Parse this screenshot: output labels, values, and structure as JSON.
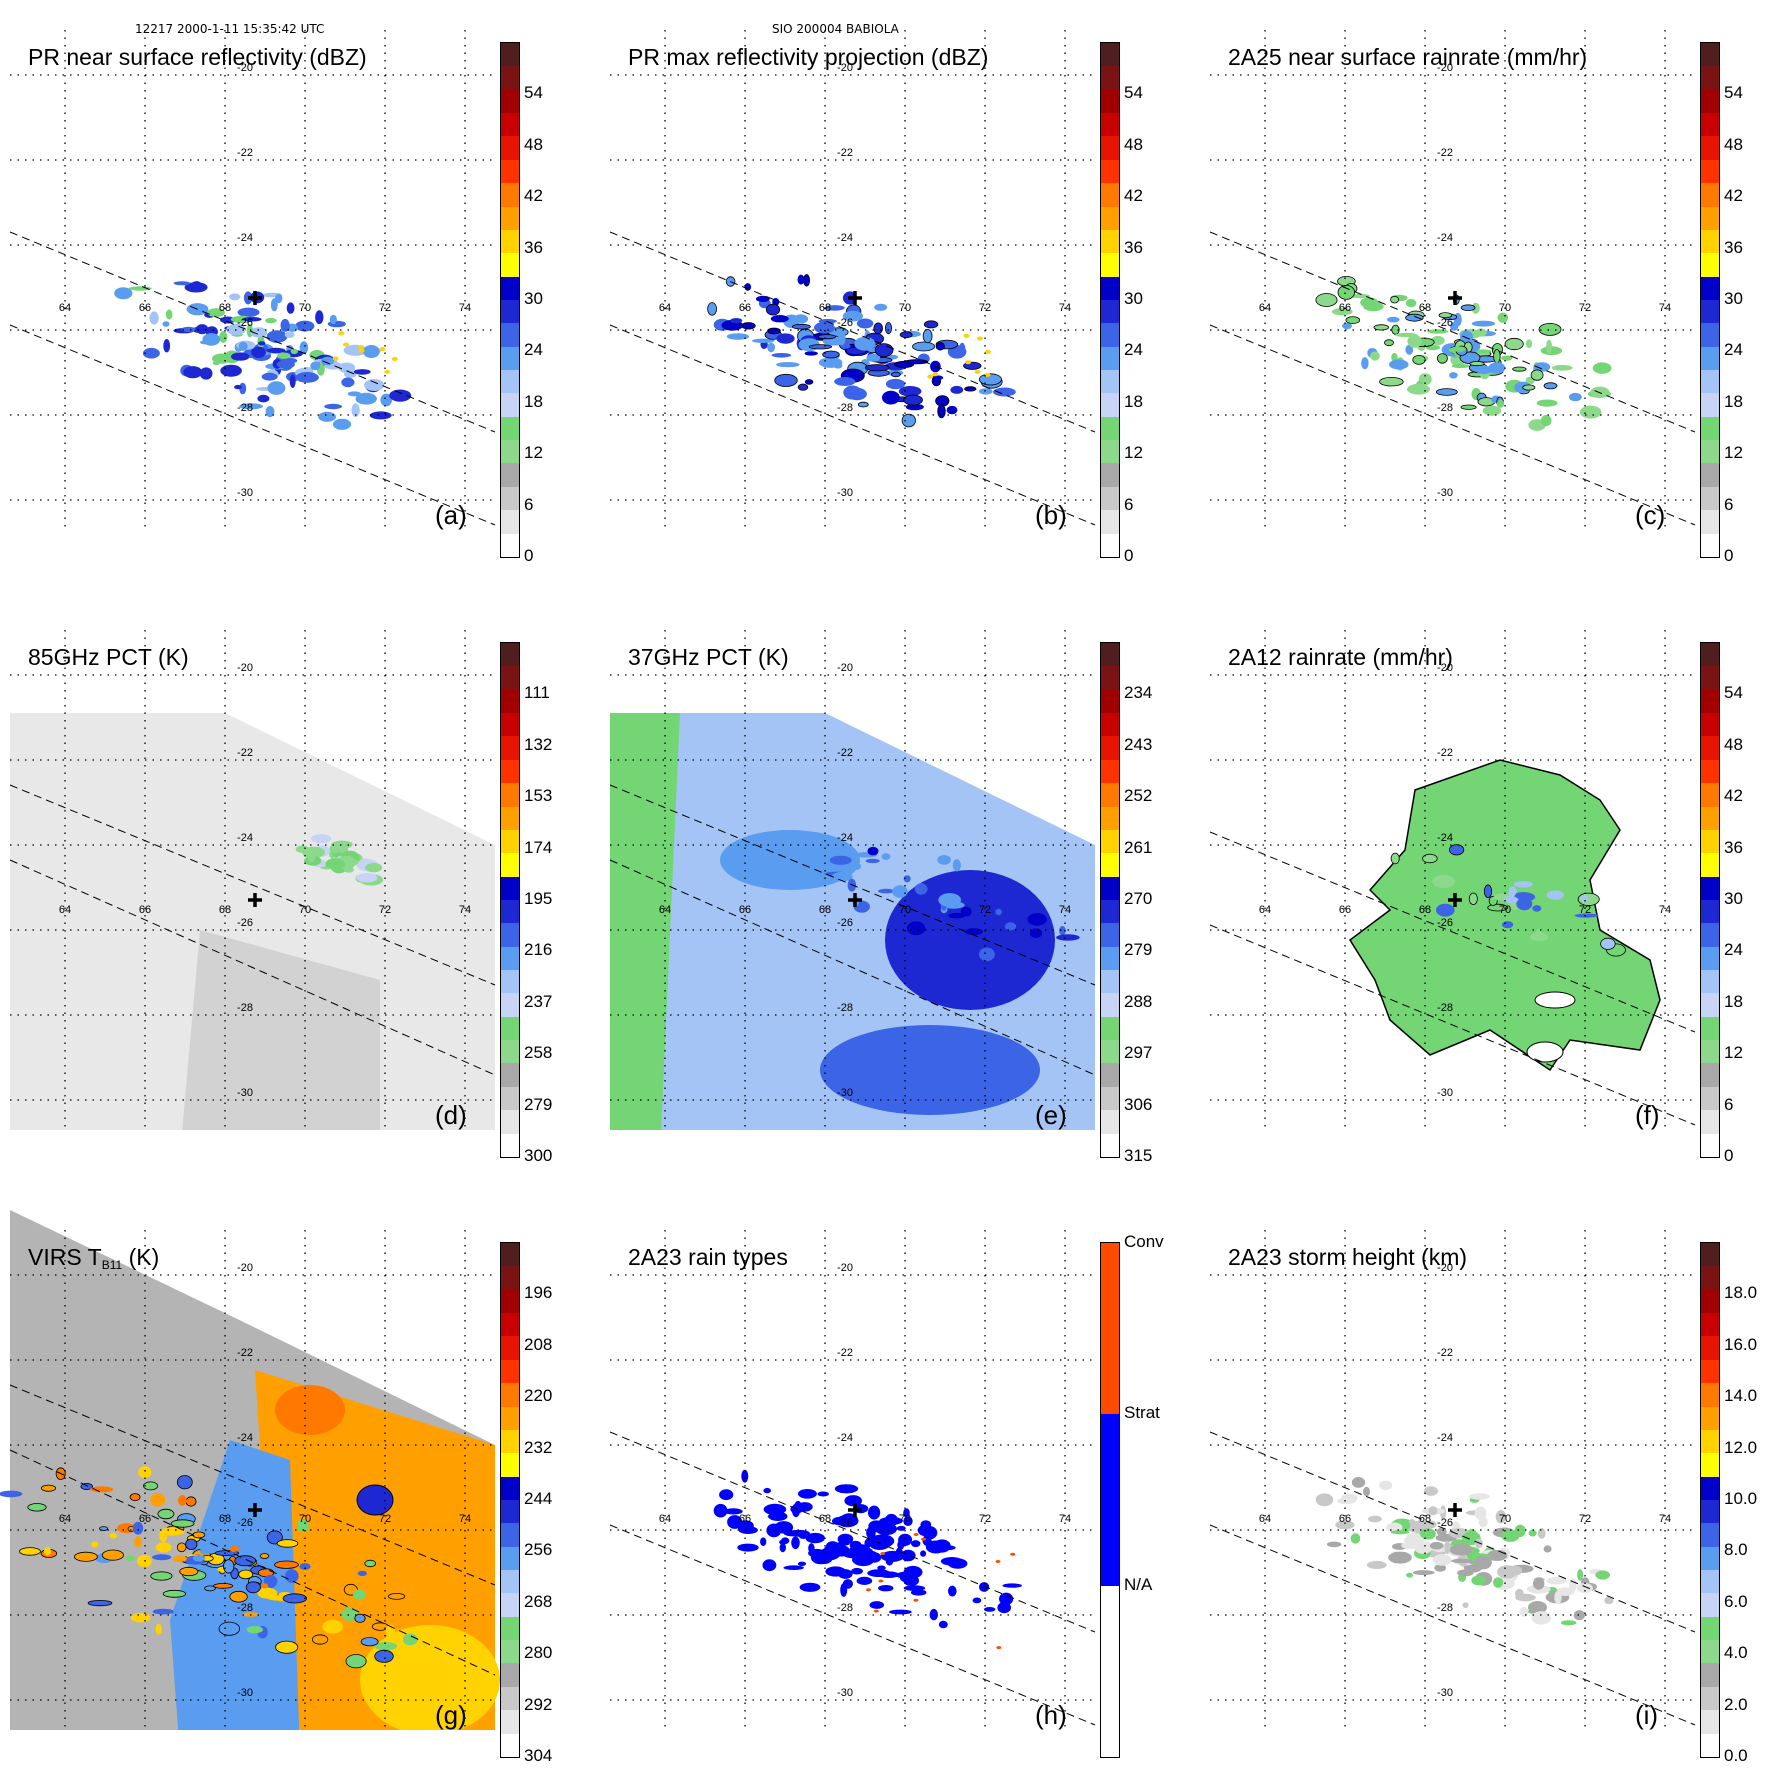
{
  "header": {
    "left": "12217 2000-1-11 15:35:42 UTC",
    "center": "SIO 200004 BABIOLA"
  },
  "grid": {
    "lon_labels": [
      "64",
      "66",
      "68",
      "70",
      "72",
      "74"
    ],
    "lat_labels": [
      "-20",
      "-22",
      "-24",
      "-26",
      "-28",
      "-30"
    ]
  },
  "colors": {
    "dbz_scale": [
      "#ffffff",
      "#e6e6e6",
      "#c8c8c8",
      "#a8a8a8",
      "#8cd98c",
      "#74d574",
      "#c8d4f5",
      "#a4c4f5",
      "#5a9cf0",
      "#3c64e6",
      "#1e28d2",
      "#0000c8",
      "#ffff00",
      "#ffd200",
      "#ffa000",
      "#ff7800",
      "#ff3200",
      "#e61400",
      "#c80000",
      "#a00000",
      "#7a1414",
      "#501e1e"
    ],
    "rain_types": [
      "#ffffff",
      "#0000ff",
      "#ff4a00"
    ]
  },
  "panels": [
    {
      "id": "a",
      "title": "PR near surface reflectivity (dBZ)",
      "label": "(a)",
      "ticks": [
        "54",
        "48",
        "42",
        "36",
        "30",
        "24",
        "18",
        "12",
        "6",
        "0"
      ]
    },
    {
      "id": "b",
      "title": "PR max reflectivity projection (dBZ)",
      "label": "(b)",
      "ticks": [
        "54",
        "48",
        "42",
        "36",
        "30",
        "24",
        "18",
        "12",
        "6",
        "0"
      ]
    },
    {
      "id": "c",
      "title": "2A25 near surface rainrate (mm/hr)",
      "label": "(c)",
      "ticks": [
        "54",
        "48",
        "42",
        "36",
        "30",
        "24",
        "18",
        "12",
        "6",
        "0"
      ]
    },
    {
      "id": "d",
      "title": "85GHz PCT (K)",
      "label": "(d)",
      "ticks": [
        "111",
        "132",
        "153",
        "174",
        "195",
        "216",
        "237",
        "258",
        "279",
        "300"
      ]
    },
    {
      "id": "e",
      "title": "37GHz PCT (K)",
      "label": "(e)",
      "ticks": [
        "234",
        "243",
        "252",
        "261",
        "270",
        "279",
        "288",
        "297",
        "306",
        "315"
      ]
    },
    {
      "id": "f",
      "title": "2A12 rainrate (mm/hr)",
      "label": "(f)",
      "ticks": [
        "54",
        "48",
        "42",
        "36",
        "30",
        "24",
        "18",
        "12",
        "6",
        "0"
      ]
    },
    {
      "id": "g",
      "title_main": "VIRS T",
      "title_sub": "B11",
      "title_unit": " (K)",
      "label": "(g)",
      "ticks": [
        "196",
        "208",
        "220",
        "232",
        "244",
        "256",
        "268",
        "280",
        "292",
        "304"
      ]
    },
    {
      "id": "h",
      "title": "2A23 rain types",
      "label": "(h)",
      "ticks": [
        "Conv",
        "Strat",
        "N/A"
      ]
    },
    {
      "id": "i",
      "title": "2A23 storm height (km)",
      "label": "(i)",
      "ticks": [
        "18.0",
        "16.0",
        "14.0",
        "12.0",
        "10.0",
        "8.0",
        "6.0",
        "4.0",
        "2.0",
        "0.0"
      ]
    }
  ]
}
